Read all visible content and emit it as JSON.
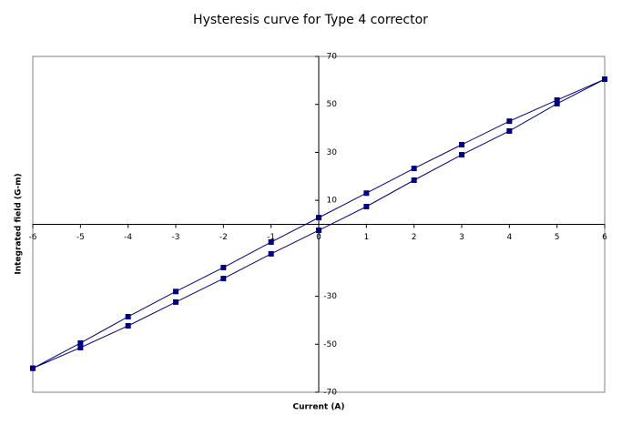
{
  "chart_data": {
    "type": "line",
    "title": "Hysteresis curve for Type 4 corrector",
    "x_label": "Current (A)",
    "y_label": "Integrated field (G-m)",
    "x": [
      -6,
      -5,
      -4,
      -3,
      -2,
      -1,
      0,
      1,
      2,
      3,
      4,
      5,
      6,
      5,
      4,
      3,
      2,
      1,
      0,
      -1,
      -2,
      -3,
      -4,
      -5,
      -6
    ],
    "values": [
      -60,
      -49.5,
      -38.5,
      -28,
      -18,
      -7.4,
      2.8,
      13,
      23.3,
      33.2,
      43,
      51.8,
      60.5,
      50.3,
      38.9,
      29,
      18.4,
      7.4,
      -2.5,
      -12.3,
      -22.6,
      -32.4,
      -42.3,
      -51.4,
      -60
    ],
    "color": "#000080",
    "xlim": [
      -6,
      6
    ],
    "xticks": [
      -6,
      -5,
      -4,
      -3,
      -2,
      -1,
      0,
      1,
      2,
      3,
      4,
      5,
      6
    ],
    "ylim": [
      -70,
      70
    ],
    "yticks": [
      -70,
      -50,
      -30,
      10,
      30,
      50,
      70
    ]
  }
}
